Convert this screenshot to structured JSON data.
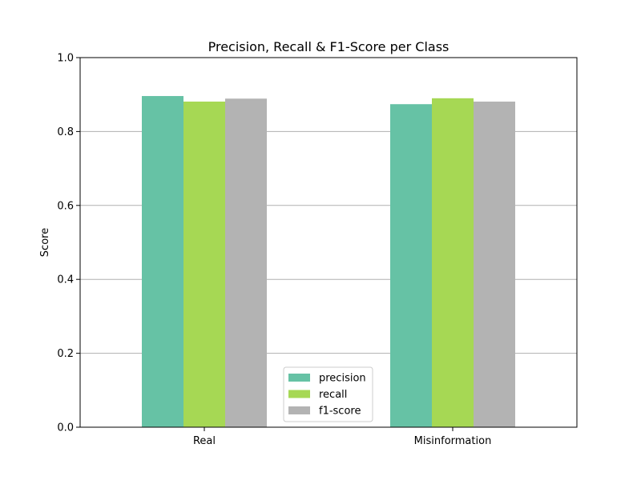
{
  "chart_data": {
    "type": "bar",
    "title": "Precision, Recall & F1-Score per Class",
    "xlabel": "",
    "ylabel": "Score",
    "categories": [
      "Real",
      "Misinformation"
    ],
    "series": [
      {
        "name": "precision",
        "values": [
          0.896,
          0.874
        ],
        "color": "#66c2a5"
      },
      {
        "name": "recall",
        "values": [
          0.881,
          0.89
        ],
        "color": "#a6d854"
      },
      {
        "name": "f1-score",
        "values": [
          0.889,
          0.881
        ],
        "color": "#b3b3b3"
      }
    ],
    "ylim": [
      0,
      1.0
    ],
    "yticks": [
      "0.0",
      "0.2",
      "0.4",
      "0.6",
      "0.8",
      "1.0"
    ],
    "grid": "horizontal",
    "legend_position": "lower-center"
  }
}
